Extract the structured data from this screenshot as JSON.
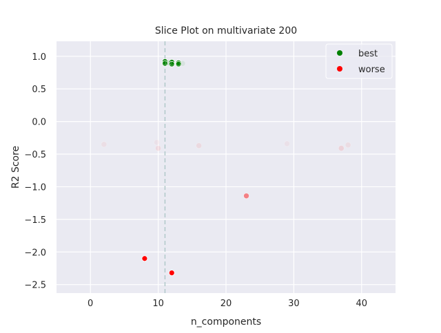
{
  "chart_data": {
    "type": "scatter",
    "title": "Slice Plot on multivariate 200",
    "xlabel": "n_components",
    "ylabel": "R2 Score",
    "xlim": [
      -5,
      45
    ],
    "ylim": [
      -2.63,
      1.23
    ],
    "xticks": [
      0,
      10,
      20,
      30,
      40
    ],
    "xtick_labels": [
      "0",
      "10",
      "20",
      "30",
      "40"
    ],
    "yticks": [
      1.0,
      0.5,
      0.0,
      -0.5,
      -1.0,
      -1.5,
      -2.0,
      -2.5
    ],
    "ytick_labels": [
      "1.0",
      "0.5",
      "0.0",
      "−0.5",
      "−1.0",
      "−1.5",
      "−2.0",
      "−2.5"
    ],
    "grid": true,
    "legend_position": "top-right",
    "reference_vline_x": 11,
    "series": [
      {
        "name": "best",
        "color": "#008000",
        "points": [
          {
            "x": 11,
            "y": 0.92,
            "alpha": 0.95
          },
          {
            "x": 11,
            "y": 0.89,
            "alpha": 0.8
          },
          {
            "x": 12,
            "y": 0.91,
            "alpha": 0.95
          },
          {
            "x": 12,
            "y": 0.88,
            "alpha": 0.8
          },
          {
            "x": 13,
            "y": 0.9,
            "alpha": 0.95
          },
          {
            "x": 13,
            "y": 0.88,
            "alpha": 0.7
          },
          {
            "x": 11.5,
            "y": 0.9,
            "alpha": 0.15
          },
          {
            "x": 13.6,
            "y": 0.89,
            "alpha": 0.08
          }
        ]
      },
      {
        "name": "worse",
        "color": "#ff0000",
        "points": [
          {
            "x": 8,
            "y": -2.1,
            "alpha": 1.0
          },
          {
            "x": 12,
            "y": -2.32,
            "alpha": 1.0
          },
          {
            "x": 23,
            "y": -1.14,
            "alpha": 0.45
          },
          {
            "x": 2,
            "y": -0.35,
            "alpha": 0.05
          },
          {
            "x": 10,
            "y": -0.41,
            "alpha": 0.08
          },
          {
            "x": 16,
            "y": -0.37,
            "alpha": 0.07
          },
          {
            "x": 29,
            "y": -0.34,
            "alpha": 0.04
          },
          {
            "x": 37,
            "y": -0.41,
            "alpha": 0.1
          },
          {
            "x": 38,
            "y": -0.36,
            "alpha": 0.06
          },
          {
            "x": 9.8,
            "y": -0.32,
            "alpha": 0.04
          }
        ]
      }
    ]
  }
}
